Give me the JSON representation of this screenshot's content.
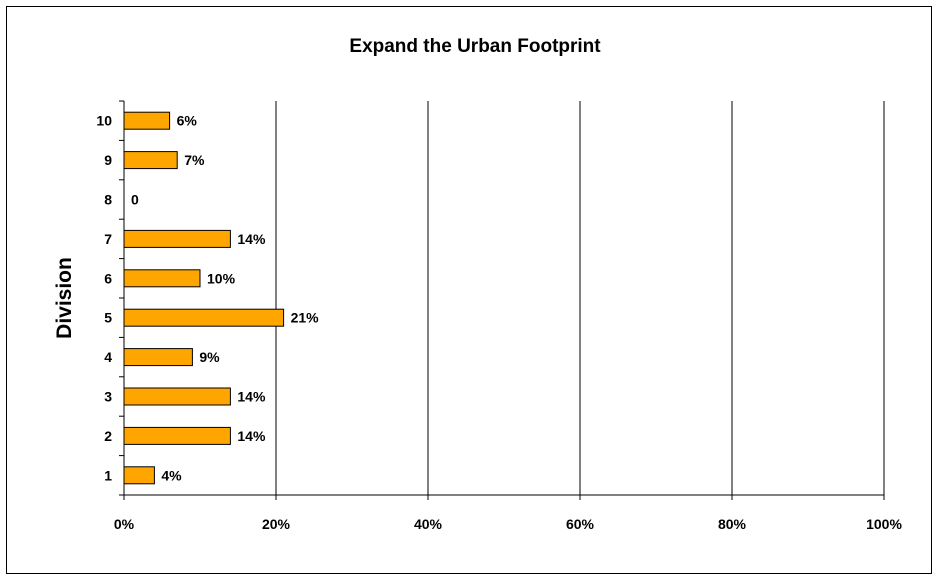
{
  "chart_data": {
    "type": "bar",
    "orientation": "horizontal",
    "title": "Expand the Urban Footprint",
    "xlabel": "",
    "ylabel": "Division",
    "categories": [
      "1",
      "2",
      "3",
      "4",
      "5",
      "6",
      "7",
      "8",
      "9",
      "10"
    ],
    "values": [
      4,
      14,
      14,
      9,
      21,
      10,
      14,
      0,
      7,
      6
    ],
    "data_labels": [
      "4%",
      "14%",
      "14%",
      "9%",
      "21%",
      "10%",
      "14%",
      "0",
      "7%",
      "6%"
    ],
    "xlim": [
      0,
      100
    ],
    "x_ticks": [
      0,
      20,
      40,
      60,
      80,
      100
    ],
    "x_tick_labels": [
      "0%",
      "20%",
      "40%",
      "60%",
      "80%",
      "100%"
    ],
    "grid": "vertical gridlines",
    "legend": "none",
    "bar_color": "#FFA500",
    "bar_edge_color": "#000000"
  }
}
